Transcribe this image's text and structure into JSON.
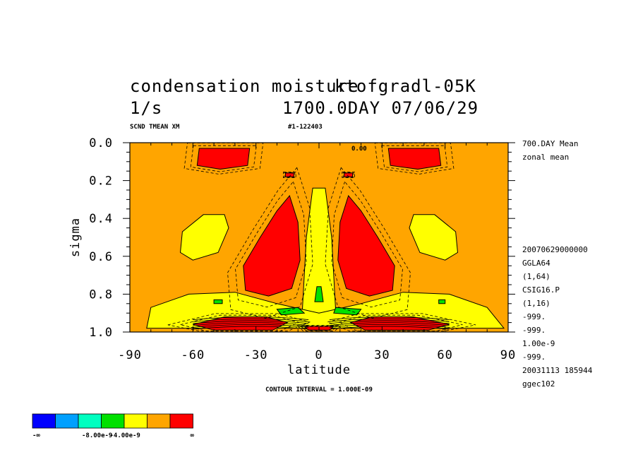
{
  "header": {
    "title_left": "condensation moisture",
    "title_overlap": "ktofgradl-05K",
    "unit": "1/s",
    "day_date": "1700.0DAY 07/06/29",
    "var_label": "SCND TMEAN XM",
    "run_id": "#1-122403"
  },
  "side_info": {
    "lines_top": [
      "700.DAY Mean",
      "zonal mean"
    ],
    "lines_bottom": [
      "20070629000000",
      "GGLA64",
      "(1,64)",
      "CSIG16.P",
      "(1,16)",
      "-999.",
      "-999.",
      "1.00e-9",
      "-999.",
      "20031113 185944",
      "ggec102"
    ]
  },
  "footer": {
    "contour_interval": "CONTOUR INTERVAL = 1.000E-09"
  },
  "colorbar": {
    "colors": [
      "#0000ff",
      "#00a0ff",
      "#00ffc0",
      "#00e000",
      "#ffff00",
      "#ffa500",
      "#ff0000"
    ],
    "labels": [
      "-∞",
      "-8.00e-9",
      "-4.00e-9",
      "∞"
    ]
  },
  "chart_data": {
    "type": "contour",
    "title": "condensation moisture",
    "xlabel": "latitude",
    "ylabel": "sigma",
    "xlim": [
      -90,
      90
    ],
    "ylim": [
      1.0,
      0.0
    ],
    "x_ticks": [
      "-90",
      "-60",
      "-30",
      "0",
      "30",
      "60",
      "90"
    ],
    "y_ticks": [
      "0.0",
      "0.2",
      "0.4",
      "0.6",
      "0.8",
      "1.0"
    ],
    "contour_interval": 1e-09,
    "zero_labels": [
      "0.00"
    ],
    "colors": {
      "background": "#ffa500",
      "positive": "#ff0000",
      "weak_negative": "#ffff00",
      "negative": "#00e000"
    },
    "regions": [
      {
        "name": "red-upper-left",
        "level": "positive",
        "pts": [
          [
            -57,
            0.03
          ],
          [
            -33,
            0.03
          ],
          [
            -34,
            0.12
          ],
          [
            -47,
            0.14
          ],
          [
            -58,
            0.12
          ]
        ]
      },
      {
        "name": "red-upper-right",
        "level": "positive",
        "pts": [
          [
            33,
            0.03
          ],
          [
            57,
            0.03
          ],
          [
            58,
            0.12
          ],
          [
            47,
            0.14
          ],
          [
            34,
            0.12
          ]
        ]
      },
      {
        "name": "red-dot-left",
        "level": "positive",
        "pts": [
          [
            -16,
            0.16
          ],
          [
            -12,
            0.16
          ],
          [
            -12,
            0.18
          ],
          [
            -16,
            0.18
          ]
        ]
      },
      {
        "name": "red-dot-right",
        "level": "positive",
        "pts": [
          [
            12,
            0.16
          ],
          [
            16,
            0.16
          ],
          [
            16,
            0.18
          ],
          [
            12,
            0.18
          ]
        ]
      },
      {
        "name": "yellow-midlat-left",
        "level": "weak_negative",
        "pts": [
          [
            -65,
            0.47
          ],
          [
            -55,
            0.38
          ],
          [
            -45,
            0.38
          ],
          [
            -43,
            0.45
          ],
          [
            -48,
            0.58
          ],
          [
            -60,
            0.62
          ],
          [
            -66,
            0.58
          ]
        ]
      },
      {
        "name": "yellow-midlat-right",
        "level": "weak_negative",
        "pts": [
          [
            65,
            0.47
          ],
          [
            55,
            0.38
          ],
          [
            45,
            0.38
          ],
          [
            43,
            0.45
          ],
          [
            48,
            0.58
          ],
          [
            60,
            0.62
          ],
          [
            66,
            0.58
          ]
        ]
      },
      {
        "name": "yellow-column",
        "level": "weak_negative",
        "pts": [
          [
            -3,
            0.24
          ],
          [
            3,
            0.24
          ],
          [
            6,
            0.5
          ],
          [
            8,
            0.9
          ],
          [
            -8,
            0.9
          ],
          [
            -6,
            0.5
          ]
        ]
      },
      {
        "name": "yellow-lower-band",
        "level": "weak_negative",
        "pts": [
          [
            -82,
            0.98
          ],
          [
            -80,
            0.87
          ],
          [
            -62,
            0.8
          ],
          [
            -40,
            0.79
          ],
          [
            -20,
            0.85
          ],
          [
            0,
            0.9
          ],
          [
            20,
            0.85
          ],
          [
            40,
            0.79
          ],
          [
            62,
            0.8
          ],
          [
            80,
            0.87
          ],
          [
            88,
            0.98
          ]
        ]
      },
      {
        "name": "red-cell-left",
        "level": "positive",
        "pts": [
          [
            -14,
            0.28
          ],
          [
            -10,
            0.42
          ],
          [
            -9,
            0.62
          ],
          [
            -13,
            0.77
          ],
          [
            -24,
            0.81
          ],
          [
            -35,
            0.78
          ],
          [
            -36,
            0.65
          ],
          [
            -28,
            0.5
          ],
          [
            -20,
            0.36
          ]
        ]
      },
      {
        "name": "red-cell-right",
        "level": "positive",
        "pts": [
          [
            14,
            0.28
          ],
          [
            10,
            0.42
          ],
          [
            9,
            0.62
          ],
          [
            13,
            0.77
          ],
          [
            24,
            0.81
          ],
          [
            35,
            0.78
          ],
          [
            36,
            0.65
          ],
          [
            28,
            0.5
          ],
          [
            20,
            0.36
          ]
        ]
      },
      {
        "name": "green-column",
        "level": "negative",
        "pts": [
          [
            -1,
            0.76
          ],
          [
            1,
            0.76
          ],
          [
            2,
            0.84
          ],
          [
            -2,
            0.84
          ]
        ]
      },
      {
        "name": "green-patch-left",
        "level": "negative",
        "pts": [
          [
            -20,
            0.88
          ],
          [
            -10,
            0.87
          ],
          [
            -7,
            0.9
          ],
          [
            -18,
            0.91
          ]
        ]
      },
      {
        "name": "green-patch-right",
        "level": "negative",
        "pts": [
          [
            8,
            0.87
          ],
          [
            20,
            0.88
          ],
          [
            18,
            0.91
          ],
          [
            7,
            0.9
          ]
        ]
      },
      {
        "name": "green-dot-left",
        "level": "negative",
        "pts": [
          [
            -50,
            0.83
          ],
          [
            -46,
            0.83
          ],
          [
            -46,
            0.85
          ],
          [
            -50,
            0.85
          ]
        ]
      },
      {
        "name": "green-dot-right",
        "level": "negative",
        "pts": [
          [
            57,
            0.83
          ],
          [
            60,
            0.83
          ],
          [
            60,
            0.85
          ],
          [
            57,
            0.85
          ]
        ]
      },
      {
        "name": "red-surface-left",
        "level": "positive",
        "pts": [
          [
            -60,
            0.96
          ],
          [
            -45,
            0.92
          ],
          [
            -25,
            0.92
          ],
          [
            -15,
            0.95
          ],
          [
            -22,
            0.99
          ],
          [
            -50,
            0.99
          ]
        ]
      },
      {
        "name": "red-surface-center",
        "level": "positive",
        "pts": [
          [
            -7,
            0.97
          ],
          [
            7,
            0.97
          ],
          [
            5,
            0.99
          ],
          [
            -5,
            0.99
          ]
        ]
      },
      {
        "name": "red-surface-right",
        "level": "positive",
        "pts": [
          [
            15,
            0.95
          ],
          [
            25,
            0.92
          ],
          [
            45,
            0.92
          ],
          [
            62,
            0.96
          ],
          [
            52,
            0.99
          ],
          [
            22,
            0.99
          ]
        ]
      }
    ]
  }
}
